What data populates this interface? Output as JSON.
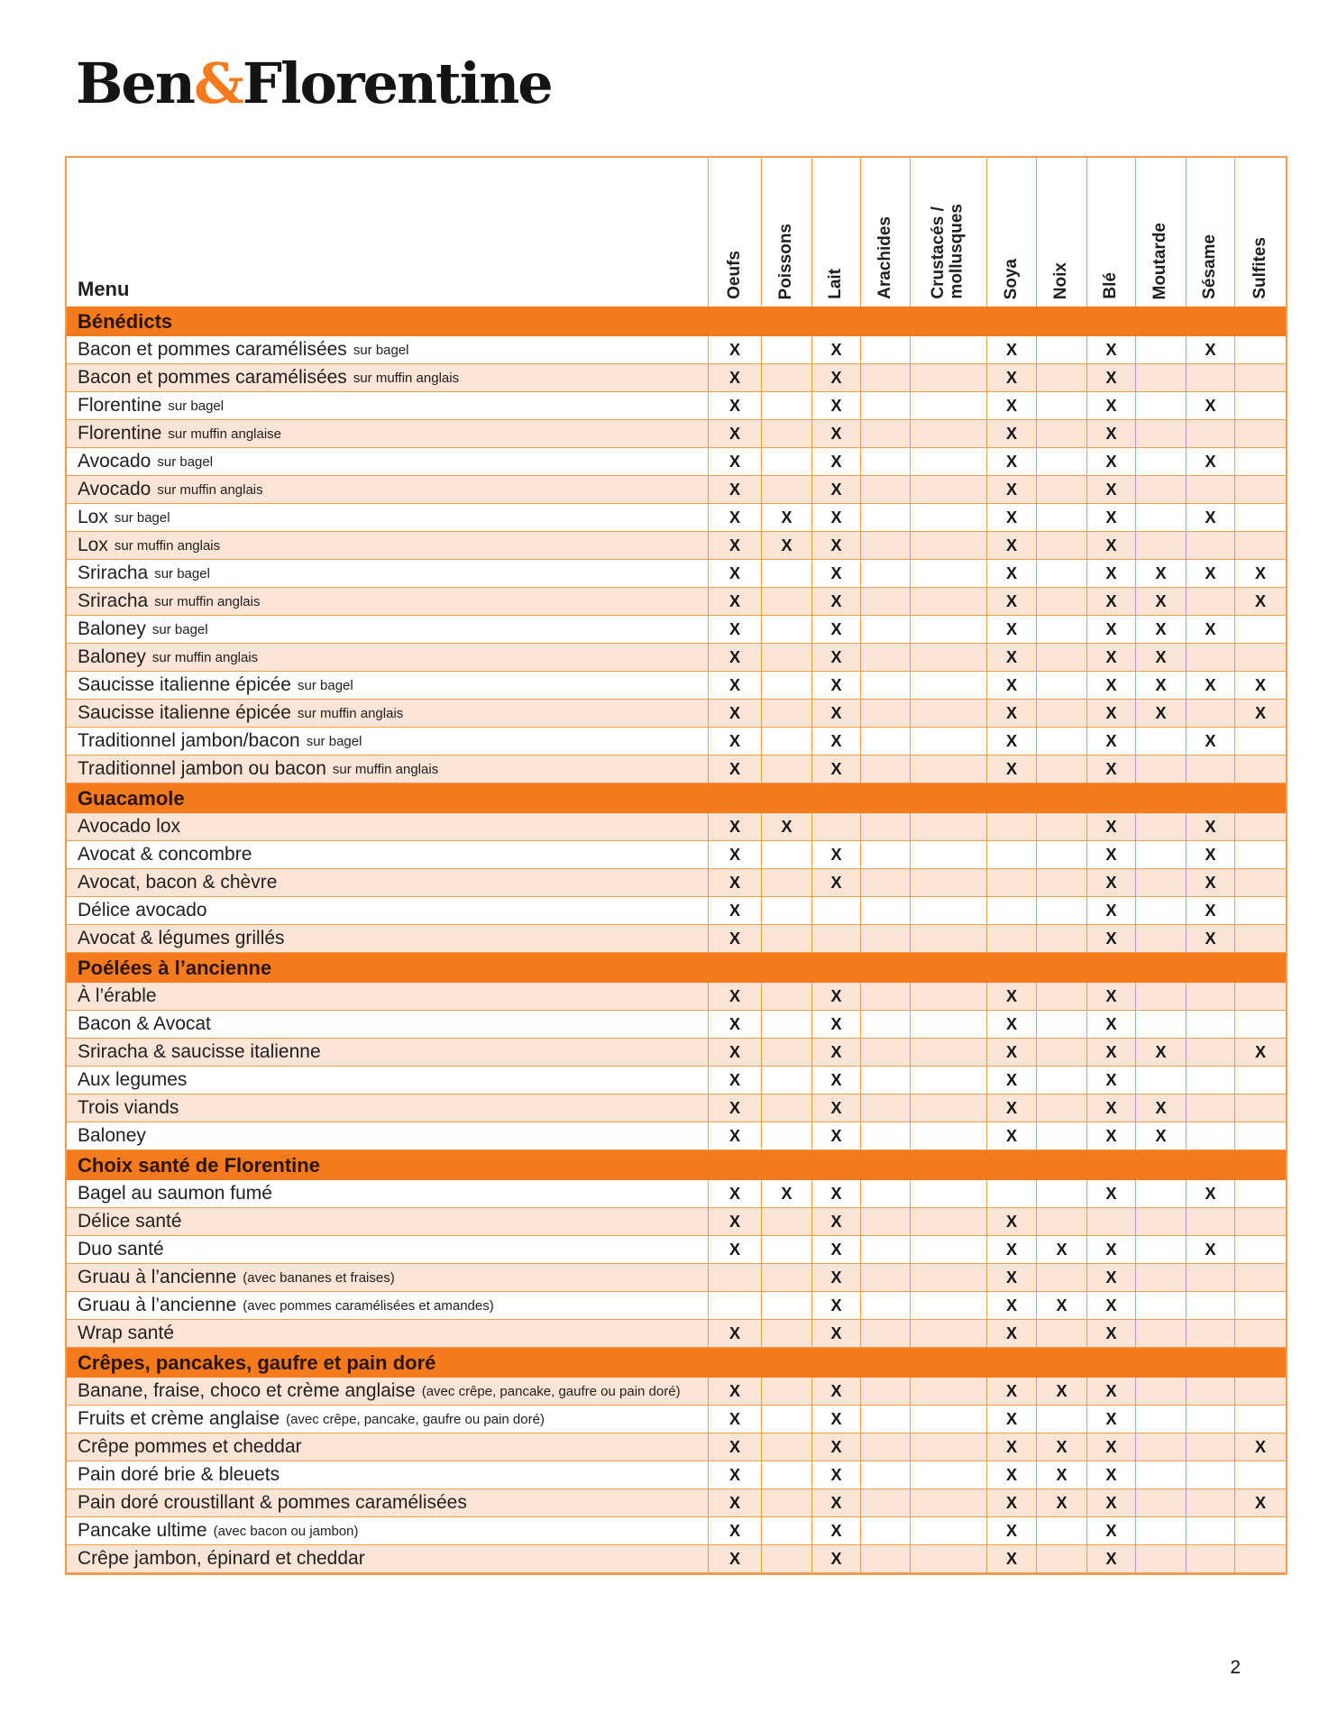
{
  "page": {
    "logo": {
      "part1": "Ben",
      "amp": "&",
      "part2": "Florentine"
    },
    "page_number": "2",
    "colors": {
      "section_orange": "#f57a1d",
      "row_peach": "#fce4d6",
      "grid_line": "#f09c55",
      "text_dark": "#1f1f1f"
    }
  },
  "table": {
    "menu_header": "Menu",
    "mark": "X",
    "columns": [
      "Oeufs",
      "Poissons",
      "Lait",
      "Arachides",
      "Crustacés /\nmollusques",
      "Soya",
      "Noix",
      "Blé",
      "Moutarde",
      "Sésame",
      "Sulfites"
    ],
    "sections": [
      {
        "title": "Bénédicts",
        "first_shade": "white",
        "items": [
          {
            "name": "Bacon et pommes caramélisées",
            "note": "sur bagel",
            "allergens": [
              0,
              2,
              5,
              7,
              9
            ]
          },
          {
            "name": "Bacon et pommes caramélisées",
            "note": "sur muffin anglais",
            "allergens": [
              0,
              2,
              5,
              7
            ]
          },
          {
            "name": "Florentine",
            "note": "sur bagel",
            "allergens": [
              0,
              2,
              5,
              7,
              9
            ]
          },
          {
            "name": "Florentine",
            "note": "sur muffin anglaise",
            "allergens": [
              0,
              2,
              5,
              7
            ]
          },
          {
            "name": "Avocado",
            "note": "sur bagel",
            "allergens": [
              0,
              2,
              5,
              7,
              9
            ]
          },
          {
            "name": "Avocado",
            "note": "sur muffin anglais",
            "allergens": [
              0,
              2,
              5,
              7
            ]
          },
          {
            "name": "Lox",
            "note": "sur bagel",
            "allergens": [
              0,
              1,
              2,
              5,
              7,
              9
            ]
          },
          {
            "name": "Lox",
            "note": "sur muffin anglais",
            "allergens": [
              0,
              1,
              2,
              5,
              7
            ]
          },
          {
            "name": "Sriracha",
            "note": "sur bagel",
            "allergens": [
              0,
              2,
              5,
              7,
              8,
              9,
              10
            ]
          },
          {
            "name": "Sriracha",
            "note": "sur muffin anglais",
            "allergens": [
              0,
              2,
              5,
              7,
              8,
              10
            ]
          },
          {
            "name": "Baloney",
            "note": "sur bagel",
            "allergens": [
              0,
              2,
              5,
              7,
              8,
              9
            ]
          },
          {
            "name": "Baloney",
            "note": "sur muffin anglais",
            "allergens": [
              0,
              2,
              5,
              7,
              8
            ]
          },
          {
            "name": "Saucisse italienne épicée",
            "note": "sur bagel",
            "allergens": [
              0,
              2,
              5,
              7,
              8,
              9,
              10
            ]
          },
          {
            "name": "Saucisse italienne épicée",
            "note": "sur muffin anglais",
            "allergens": [
              0,
              2,
              5,
              7,
              8,
              10
            ]
          },
          {
            "name": "Traditionnel jambon/bacon",
            "note": "sur bagel",
            "allergens": [
              0,
              2,
              5,
              7,
              9
            ]
          },
          {
            "name": "Traditionnel jambon ou bacon",
            "note": "sur muffin anglais",
            "allergens": [
              0,
              2,
              5,
              7
            ]
          }
        ]
      },
      {
        "title": "Guacamole",
        "first_shade": "peach",
        "items": [
          {
            "name": "Avocado lox",
            "note": "",
            "allergens": [
              0,
              1,
              7,
              9
            ]
          },
          {
            "name": "Avocat & concombre",
            "note": "",
            "allergens": [
              0,
              2,
              7,
              9
            ]
          },
          {
            "name": "Avocat, bacon & chèvre",
            "note": "",
            "allergens": [
              0,
              2,
              7,
              9
            ]
          },
          {
            "name": "Délice avocado",
            "note": "",
            "allergens": [
              0,
              7,
              9
            ]
          },
          {
            "name": "Avocat & légumes grillés",
            "note": "",
            "allergens": [
              0,
              7,
              9
            ]
          }
        ]
      },
      {
        "title": "Poélées à l’ancienne",
        "first_shade": "peach",
        "items": [
          {
            "name": "À l’érable",
            "note": "",
            "allergens": [
              0,
              2,
              5,
              7
            ]
          },
          {
            "name": "Bacon & Avocat",
            "note": "",
            "allergens": [
              0,
              2,
              5,
              7
            ]
          },
          {
            "name": "Sriracha & saucisse italienne",
            "note": "",
            "allergens": [
              0,
              2,
              5,
              7,
              8,
              10
            ]
          },
          {
            "name": "Aux legumes",
            "note": "",
            "allergens": [
              0,
              2,
              5,
              7
            ]
          },
          {
            "name": "Trois viands",
            "note": "",
            "allergens": [
              0,
              2,
              5,
              7,
              8
            ]
          },
          {
            "name": "Baloney",
            "note": "",
            "allergens": [
              0,
              2,
              5,
              7,
              8
            ]
          }
        ]
      },
      {
        "title": "Choix santé de Florentine",
        "first_shade": "white",
        "items": [
          {
            "name": "Bagel au saumon fumé",
            "note": "",
            "allergens": [
              0,
              1,
              2,
              7,
              9
            ]
          },
          {
            "name": "Délice santé",
            "note": "",
            "allergens": [
              0,
              2,
              5
            ]
          },
          {
            "name": "Duo santé",
            "note": "",
            "allergens": [
              0,
              2,
              5,
              6,
              7,
              9
            ]
          },
          {
            "name": "Gruau à l’ancienne",
            "note": "(avec bananes et fraises)",
            "allergens": [
              2,
              5,
              7
            ]
          },
          {
            "name": "Gruau à l’ancienne",
            "note": "(avec pommes caramélisées et amandes)",
            "allergens": [
              2,
              5,
              6,
              7
            ]
          },
          {
            "name": "Wrap santé",
            "note": "",
            "allergens": [
              0,
              2,
              5,
              7
            ]
          }
        ]
      },
      {
        "title": "Crêpes, pancakes, gaufre et pain doré",
        "first_shade": "peach",
        "items": [
          {
            "name": "Banane, fraise, choco et crème anglaise",
            "note": "(avec crêpe, pancake, gaufre ou pain doré)",
            "allergens": [
              0,
              2,
              5,
              6,
              7
            ]
          },
          {
            "name": "Fruits et crème anglaise",
            "note": "(avec crêpe, pancake, gaufre ou pain doré)",
            "allergens": [
              0,
              2,
              5,
              7
            ]
          },
          {
            "name": "Crêpe pommes et cheddar",
            "note": "",
            "allergens": [
              0,
              2,
              5,
              6,
              7,
              10
            ]
          },
          {
            "name": "Pain doré brie & bleuets",
            "note": "",
            "allergens": [
              0,
              2,
              5,
              6,
              7
            ]
          },
          {
            "name": "Pain doré croustillant & pommes caramélisées",
            "note": "",
            "allergens": [
              0,
              2,
              5,
              6,
              7,
              10
            ]
          },
          {
            "name": "Pancake ultime",
            "note": "(avec bacon ou jambon)",
            "allergens": [
              0,
              2,
              5,
              7
            ]
          },
          {
            "name": "Crêpe jambon, épinard et cheddar",
            "note": "",
            "allergens": [
              0,
              2,
              5,
              7
            ]
          }
        ]
      }
    ]
  }
}
